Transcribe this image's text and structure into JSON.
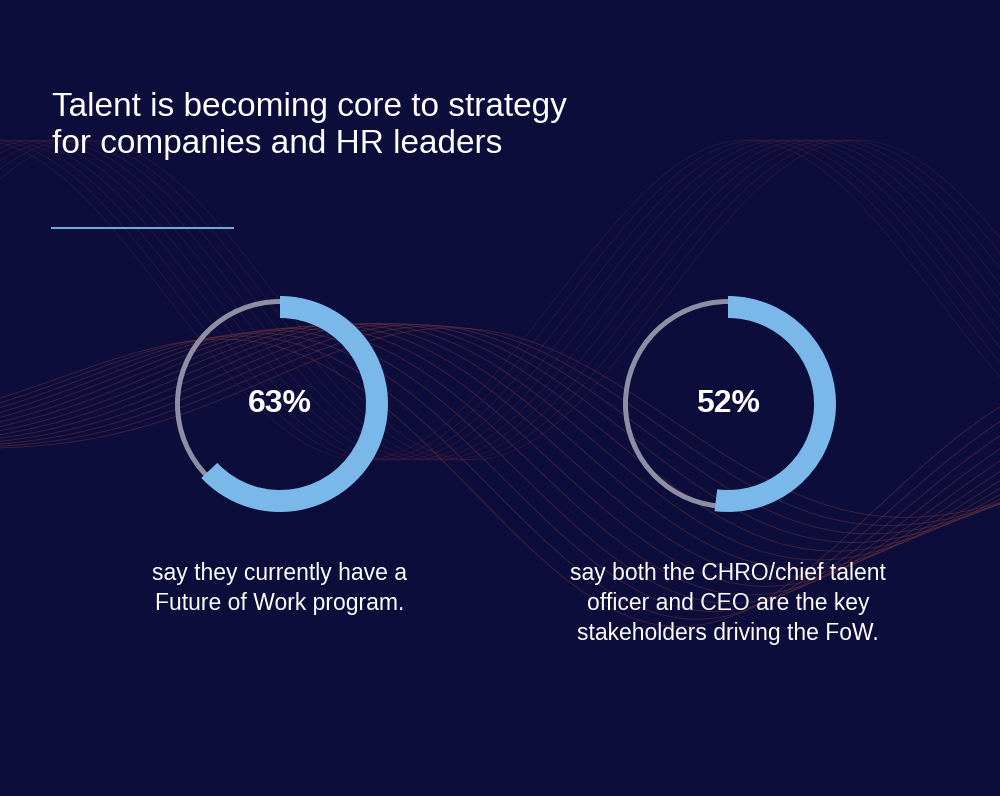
{
  "title": "Talent is becoming core to strategy\nfor companies and HR leaders",
  "chart_data": [
    {
      "type": "donut",
      "values": [
        63
      ],
      "value_labels": [
        "63%"
      ],
      "annotation": "say they currently have a\nFuture of Work program.",
      "color": "#7ab8ea"
    },
    {
      "type": "donut",
      "values": [
        52
      ],
      "value_labels": [
        "52%"
      ],
      "annotation": "say both the CHRO/chief talent\nofficer and CEO are the key\nstakeholders driving the FoW.",
      "color": "#7ab8ea"
    }
  ]
}
